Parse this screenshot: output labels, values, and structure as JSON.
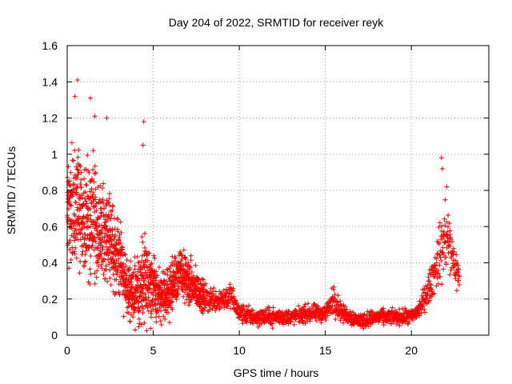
{
  "chart_data": {
    "type": "scatter",
    "title": "Day 204 of 2022, SRMTID for receiver reyk",
    "xlabel": "GPS time / hours",
    "ylabel": "SRMTID / TECUs",
    "xlim": [
      0,
      24.5
    ],
    "ylim": [
      0,
      1.6
    ],
    "grid": true,
    "marker": "+",
    "x_ticks": [
      0,
      5,
      10,
      15,
      20
    ],
    "x_tick_labels": [
      "0",
      "5",
      "10",
      "15",
      "20"
    ],
    "y_ticks": [
      0,
      0.2,
      0.4,
      0.6,
      0.8,
      1.0,
      1.2,
      1.4,
      1.6
    ],
    "y_tick_labels": [
      "0",
      "0.2",
      "0.4",
      "0.6",
      "0.8",
      "1",
      "1.2",
      "1.4",
      "1.6"
    ],
    "colors": {
      "series": "#ff0000",
      "grid": "#a0a0a0",
      "axis": "#000000"
    },
    "series": [
      {
        "name": "reyk",
        "note": "approximate data envelope: [hour, y_center, y_spread] read from the plot",
        "envelope": [
          [
            0.0,
            0.65,
            0.45
          ],
          [
            0.5,
            0.75,
            0.45
          ],
          [
            1.0,
            0.65,
            0.45
          ],
          [
            1.5,
            0.65,
            0.45
          ],
          [
            2.0,
            0.55,
            0.4
          ],
          [
            2.5,
            0.55,
            0.35
          ],
          [
            3.0,
            0.45,
            0.3
          ],
          [
            3.5,
            0.25,
            0.25
          ],
          [
            4.0,
            0.2,
            0.25
          ],
          [
            4.5,
            0.35,
            0.4
          ],
          [
            5.0,
            0.25,
            0.25
          ],
          [
            5.5,
            0.2,
            0.2
          ],
          [
            6.0,
            0.25,
            0.2
          ],
          [
            6.5,
            0.35,
            0.2
          ],
          [
            7.0,
            0.3,
            0.2
          ],
          [
            7.5,
            0.25,
            0.15
          ],
          [
            8.0,
            0.2,
            0.12
          ],
          [
            8.5,
            0.2,
            0.1
          ],
          [
            9.0,
            0.2,
            0.1
          ],
          [
            9.5,
            0.22,
            0.1
          ],
          [
            10.0,
            0.12,
            0.08
          ],
          [
            11.0,
            0.1,
            0.07
          ],
          [
            12.0,
            0.1,
            0.07
          ],
          [
            13.0,
            0.1,
            0.06
          ],
          [
            14.0,
            0.12,
            0.07
          ],
          [
            15.0,
            0.12,
            0.07
          ],
          [
            15.5,
            0.2,
            0.12
          ],
          [
            16.0,
            0.12,
            0.07
          ],
          [
            17.0,
            0.08,
            0.06
          ],
          [
            18.0,
            0.1,
            0.06
          ],
          [
            19.0,
            0.1,
            0.06
          ],
          [
            20.0,
            0.1,
            0.06
          ],
          [
            20.5,
            0.15,
            0.08
          ],
          [
            21.0,
            0.25,
            0.12
          ],
          [
            21.5,
            0.4,
            0.2
          ],
          [
            22.0,
            0.55,
            0.35
          ],
          [
            22.5,
            0.4,
            0.15
          ],
          [
            22.8,
            0.3,
            0.15
          ]
        ],
        "highlights": [
          [
            0.6,
            1.41
          ],
          [
            0.45,
            1.32
          ],
          [
            1.35,
            1.31
          ],
          [
            1.6,
            1.21
          ],
          [
            2.3,
            1.2
          ],
          [
            4.45,
            1.18
          ],
          [
            4.4,
            1.05
          ],
          [
            21.75,
            0.98
          ],
          [
            21.8,
            0.92
          ],
          [
            22.05,
            0.82
          ]
        ]
      }
    ]
  }
}
